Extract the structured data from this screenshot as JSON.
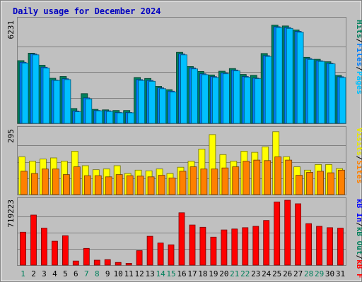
{
  "chart_data": {
    "type": "bar",
    "title": "Daily usage for December 2024",
    "days": [
      "1",
      "2",
      "3",
      "4",
      "5",
      "6",
      "7",
      "8",
      "9",
      "10",
      "11",
      "12",
      "13",
      "14",
      "15",
      "16",
      "17",
      "18",
      "19",
      "20",
      "21",
      "22",
      "23",
      "24",
      "25",
      "26",
      "27",
      "28",
      "29",
      "30",
      "31"
    ],
    "weekend_days": [
      "1",
      "7",
      "8",
      "14",
      "15",
      "21",
      "22",
      "28",
      "29"
    ],
    "panels": [
      {
        "max_label": "6231",
        "max_value": 6231,
        "axis_labels": [
          "Hits",
          "Files",
          "Pages"
        ],
        "axis_label_colors": [
          "#00805c",
          "#0080ff",
          "#00c0ff"
        ],
        "series": [
          {
            "name": "Hits",
            "color": "#00805c",
            "values": [
              3800,
              4250,
              3520,
              2730,
              2840,
              900,
              1800,
              850,
              820,
              780,
              780,
              2780,
              2720,
              2240,
              2040,
              4300,
              3440,
              3140,
              2930,
              3160,
              3320,
              2960,
              2910,
              4230,
              5950,
              5900,
              5660,
              4000,
              3880,
              3730,
              2900
            ]
          },
          {
            "name": "Files",
            "color": "#0080ff",
            "values": [
              3700,
              4200,
              3400,
              2620,
              2700,
              750,
              1540,
              780,
              760,
              660,
              660,
              2650,
              2600,
              2150,
              1950,
              4200,
              3360,
              3000,
              2830,
              3050,
              3230,
              2840,
              2740,
              4100,
              5850,
              5800,
              5570,
              3920,
              3790,
              3640,
              2820
            ]
          },
          {
            "name": "Pages",
            "color": "#00c0ff",
            "values": [
              3650,
              4150,
              3350,
              2600,
              2650,
              700,
              1480,
              760,
              720,
              640,
              640,
              2600,
              2550,
              2100,
              1900,
              4150,
              3300,
              2950,
              2780,
              3000,
              3180,
              2800,
              2700,
              4050,
              5800,
              5750,
              5520,
              3870,
              3750,
              3600,
              2780
            ]
          }
        ]
      },
      {
        "max_label": "295",
        "max_value": 295,
        "axis_labels": [
          "Visits",
          "Sites"
        ],
        "axis_label_colors": [
          "#e8e800",
          "#ff8000"
        ],
        "series": [
          {
            "name": "Visits",
            "color": "#ffff00",
            "values": [
              170,
              150,
              160,
              165,
              150,
              195,
              130,
              112,
              115,
              130,
              95,
              110,
              107,
              115,
              95,
              123,
              150,
              205,
              270,
              180,
              150,
              195,
              190,
              215,
              283,
              170,
              125,
              110,
              135,
              135,
              117
            ]
          },
          {
            "name": "Sites",
            "color": "#ff8000",
            "values": [
              105,
              95,
              115,
              115,
              90,
              125,
              85,
              85,
              80,
              90,
              85,
              83,
              80,
              87,
              75,
              105,
              125,
              115,
              115,
              120,
              125,
              150,
              155,
              153,
              170,
              155,
              87,
              100,
              105,
              98,
              110
            ]
          }
        ]
      },
      {
        "max_label": "719223",
        "max_value": 719223,
        "axis_labels": [
          "kB In",
          "kB Out",
          "kB F"
        ],
        "axis_label_colors": [
          "#0000ff",
          "#00805c",
          "#ff0000"
        ],
        "series": [
          {
            "name": "kB F",
            "color": "#ff0000",
            "values": [
              365000,
              555000,
              410000,
              265000,
              325000,
              45000,
              185000,
              55000,
              60000,
              30000,
              20000,
              160000,
              320000,
              245000,
              225000,
              580000,
              445000,
              420000,
              310000,
              390000,
              400000,
              415000,
              430000,
              495000,
              700000,
              719223,
              680000,
              460000,
              430000,
              415000,
              410000
            ]
          }
        ]
      }
    ]
  }
}
